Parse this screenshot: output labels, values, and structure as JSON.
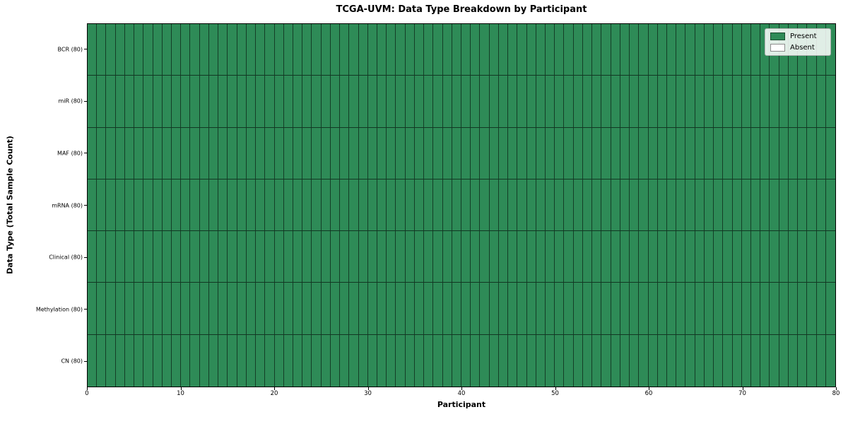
{
  "chart_data": {
    "type": "heatmap",
    "title": "TCGA-UVM: Data Type Breakdown by Participant",
    "xlabel": "Participant",
    "ylabel": "Data Type (Total Sample Count)",
    "xlim": [
      0,
      80
    ],
    "x_ticks": [
      0,
      10,
      20,
      30,
      40,
      50,
      60,
      70,
      80
    ],
    "n_participants": 80,
    "grid": "cell-borders",
    "rows": [
      {
        "label": "BCR (80)",
        "total": 80,
        "present_count": 80
      },
      {
        "label": "miR (80)",
        "total": 80,
        "present_count": 80
      },
      {
        "label": "MAF (80)",
        "total": 80,
        "present_count": 80
      },
      {
        "label": "mRNA (80)",
        "total": 80,
        "present_count": 80
      },
      {
        "label": "Clinical (80)",
        "total": 80,
        "present_count": 80
      },
      {
        "label": "Methylation (80)",
        "total": 80,
        "present_count": 80
      },
      {
        "label": "CN (80)",
        "total": 80,
        "present_count": 80
      }
    ],
    "cell_states": [
      "Present",
      "Absent"
    ],
    "all_cells_state": "Present",
    "colors": {
      "present": "#2e8b57",
      "absent": "#ffffff",
      "cell_border": "#1e3a2a",
      "axis": "#000000"
    },
    "legend": {
      "position": "upper right",
      "entries": [
        {
          "label": "Present",
          "color": "#2e8b57"
        },
        {
          "label": "Absent",
          "color": "#ffffff"
        }
      ]
    }
  }
}
